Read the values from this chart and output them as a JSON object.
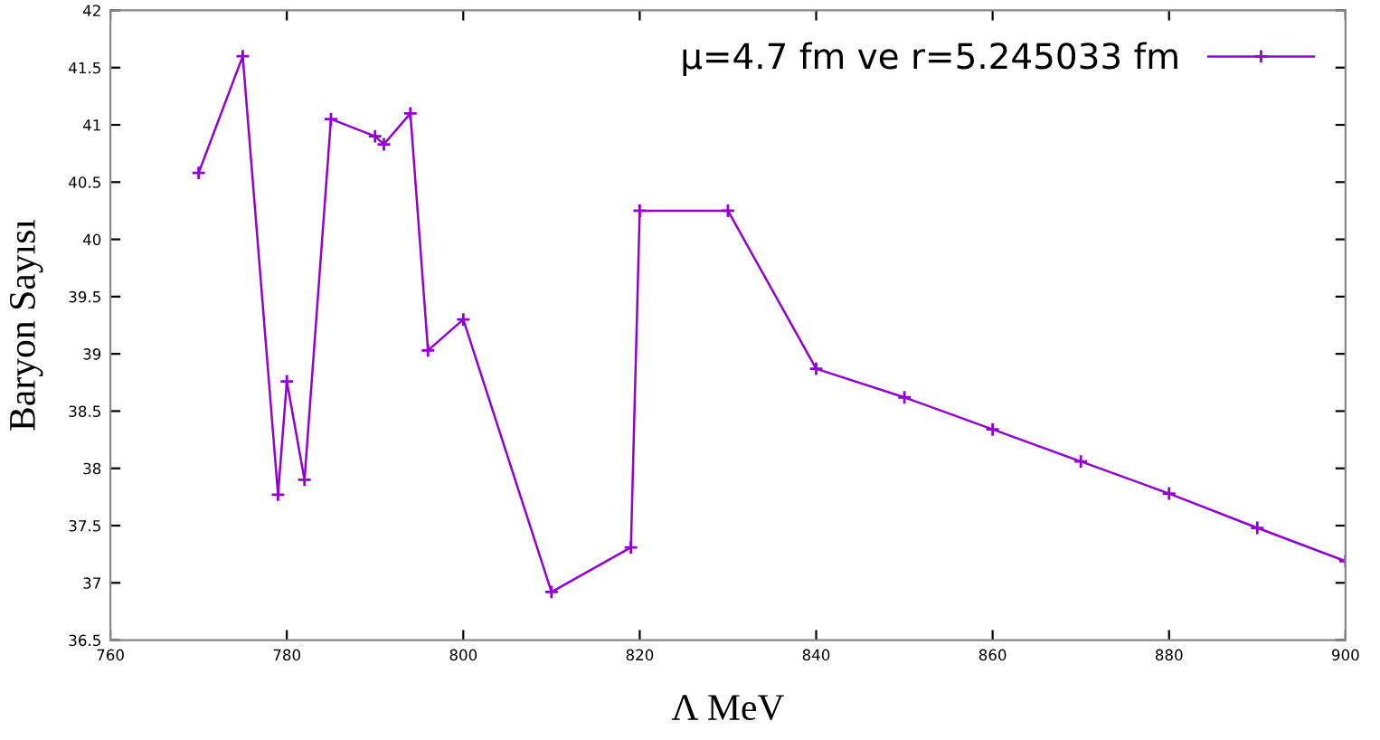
{
  "chart_data": {
    "type": "line",
    "xlabel": "Λ MeV",
    "ylabel": "Baryon Sayısı",
    "xlim": [
      760,
      900
    ],
    "xticks": [
      760,
      780,
      800,
      820,
      840,
      860,
      880,
      900
    ],
    "ylim": [
      36.5,
      42
    ],
    "yticks": [
      36.5,
      37,
      37.5,
      38,
      38.5,
      39,
      39.5,
      40,
      40.5,
      41,
      41.5,
      42
    ],
    "series": [
      {
        "name": "μ=4.7 fm ve r=5.245033 fm",
        "color": "#9400d3",
        "x": [
          770,
          775,
          779,
          780,
          782,
          785,
          790,
          791,
          794,
          796,
          800,
          810,
          819,
          820,
          830,
          840,
          850,
          860,
          870,
          880,
          890,
          900
        ],
        "values": [
          40.58,
          41.6,
          37.77,
          38.76,
          37.9,
          41.05,
          40.9,
          40.83,
          41.1,
          39.03,
          39.3,
          36.92,
          37.31,
          40.25,
          40.25,
          38.87,
          38.62,
          38.34,
          38.06,
          37.78,
          37.48,
          37.19
        ]
      }
    ],
    "marker": "cross",
    "line_style": "solid",
    "legend": "top right",
    "grid": false
  }
}
